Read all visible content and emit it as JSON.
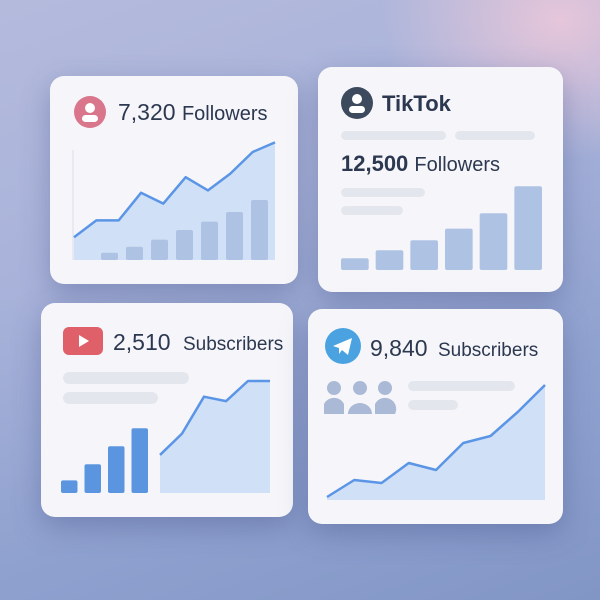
{
  "colors": {
    "line": "#5b95e6",
    "area": "#c9dcf4",
    "bar_soft": "#aec3e4",
    "bar_strong": "#5b95e0",
    "pink": "#d9768c",
    "dark": "#3d4a5e",
    "youtube": "#e0606a",
    "telegram": "#4aa3e0",
    "people": "#aab9d6"
  },
  "cards": [
    {
      "icon": "user-icon",
      "count": "7,320",
      "label": "Followers",
      "trend": [
        19,
        33,
        33,
        56,
        47,
        69,
        58,
        72,
        90,
        98
      ],
      "bars": [
        6,
        11,
        17,
        25,
        32,
        40,
        50
      ]
    },
    {
      "icon": "user-icon",
      "platform": "TikTok",
      "count": "12,500",
      "label": "Followers",
      "bars": [
        13,
        22,
        33,
        46,
        63,
        93
      ]
    },
    {
      "icon": "youtube-icon",
      "count": "2,510",
      "label": "Subscribers",
      "bars": [
        14,
        32,
        52,
        72
      ],
      "trend": [
        34,
        53,
        86,
        82,
        100,
        100
      ]
    },
    {
      "icon": "telegram-icon",
      "count": "9,840",
      "label": "Subscribers",
      "trend": [
        3,
        20,
        17,
        37,
        30,
        57,
        64,
        88,
        115
      ]
    }
  ]
}
